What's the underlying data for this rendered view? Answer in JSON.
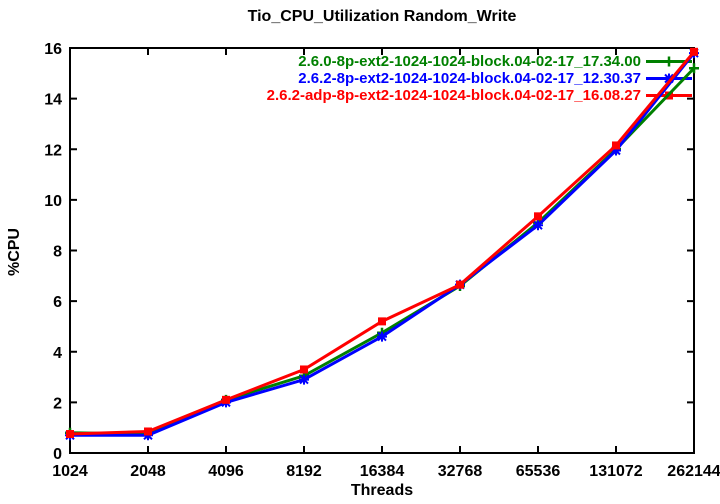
{
  "chart_data": {
    "type": "line",
    "title": "Tio_CPU_Utilization Random_Write",
    "xlabel": "Threads",
    "ylabel": "%CPU",
    "x_scale": "log2-categorical",
    "categories": [
      "1024",
      "2048",
      "4096",
      "8192",
      "16384",
      "32768",
      "65536",
      "131072",
      "262144"
    ],
    "ylim": [
      0,
      16
    ],
    "yticks": [
      0,
      2,
      4,
      6,
      8,
      10,
      12,
      14,
      16
    ],
    "grid": false,
    "legend_position": "top-right-inside",
    "border_color": "#000000",
    "background_color": "#ffffff",
    "series": [
      {
        "name": "2.6.0-8p-ext2-1024-1024-block.04-02-17_17.34.00",
        "color": "#008000",
        "marker": "plus",
        "values": [
          0.8,
          0.75,
          2.1,
          3.05,
          4.75,
          6.6,
          9.1,
          12.0,
          15.2
        ]
      },
      {
        "name": "2.6.2-8p-ext2-1024-1024-block.04-02-17_12.30.37",
        "color": "#0000ff",
        "marker": "asterisk",
        "values": [
          0.7,
          0.7,
          2.0,
          2.9,
          4.6,
          6.65,
          9.0,
          11.95,
          15.8
        ]
      },
      {
        "name": "2.6.2-adp-8p-ext2-1024-1024-block.04-02-17_16.08.27",
        "color": "#ff0000",
        "marker": "filled-square",
        "values": [
          0.75,
          0.85,
          2.1,
          3.3,
          5.2,
          6.65,
          9.35,
          12.15,
          15.85
        ]
      }
    ]
  }
}
